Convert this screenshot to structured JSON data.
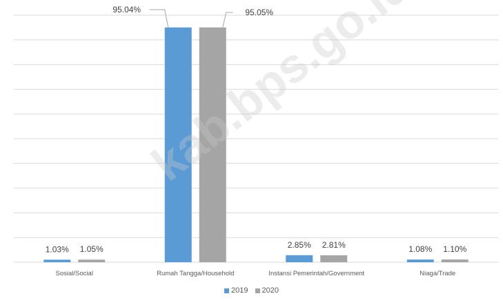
{
  "chart_data": {
    "type": "bar",
    "categories": [
      "Sosial/Social",
      "Rumah Tangga/Household",
      "Instansi Pemerintah/Government",
      "Niaga/Trade"
    ],
    "series": [
      {
        "name": "2019",
        "values": [
          1.03,
          95.04,
          2.85,
          1.08
        ],
        "labels": [
          "1.03%",
          "95.04%",
          "2.85%",
          "1.08%"
        ],
        "color": "#5b9bd5"
      },
      {
        "name": "2020",
        "values": [
          1.05,
          95.05,
          2.81,
          1.1
        ],
        "labels": [
          "1.05%",
          "95.05%",
          "2.81%",
          "1.10%"
        ],
        "color": "#a5a5a5"
      }
    ],
    "ylim": [
      0,
      100
    ],
    "grid": true,
    "legend_position": "bottom"
  },
  "watermark": "kab.bps.go.id"
}
